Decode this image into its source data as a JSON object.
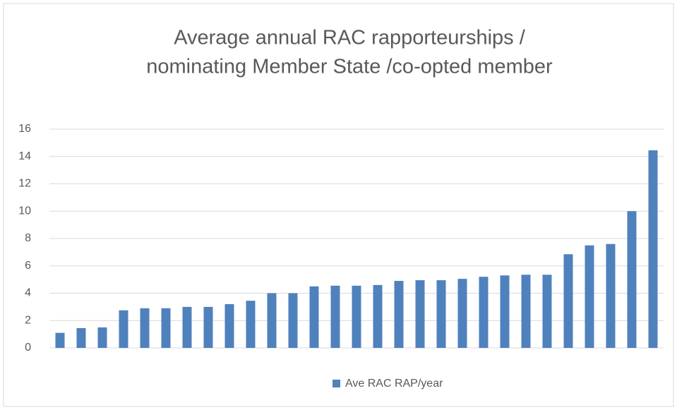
{
  "chart_data": {
    "type": "bar",
    "title": [
      "Average annual RAC rapporteurships /",
      "nominating Member State  /co-opted member"
    ],
    "categories": [
      null,
      null,
      null,
      null,
      null,
      null,
      null,
      null,
      null,
      null,
      null,
      null,
      null,
      null,
      null,
      null,
      null,
      null,
      null,
      null,
      null,
      null,
      null,
      null,
      null,
      null,
      null,
      null,
      null
    ],
    "series": [
      {
        "name": "Ave RAC RAP/year",
        "color": "#4f81bd",
        "values": [
          1.1,
          1.45,
          1.5,
          2.75,
          2.9,
          2.9,
          3.0,
          3.0,
          3.2,
          3.45,
          4.0,
          4.0,
          4.5,
          4.55,
          4.55,
          4.6,
          4.9,
          4.95,
          4.95,
          5.05,
          5.2,
          5.3,
          5.35,
          5.35,
          6.85,
          7.5,
          7.6,
          10.0,
          14.45
        ]
      }
    ],
    "ylim": [
      0,
      16
    ],
    "yticks": [
      0,
      2,
      4,
      6,
      8,
      10,
      12,
      14,
      16
    ],
    "grid": true,
    "legend": "bottom"
  }
}
